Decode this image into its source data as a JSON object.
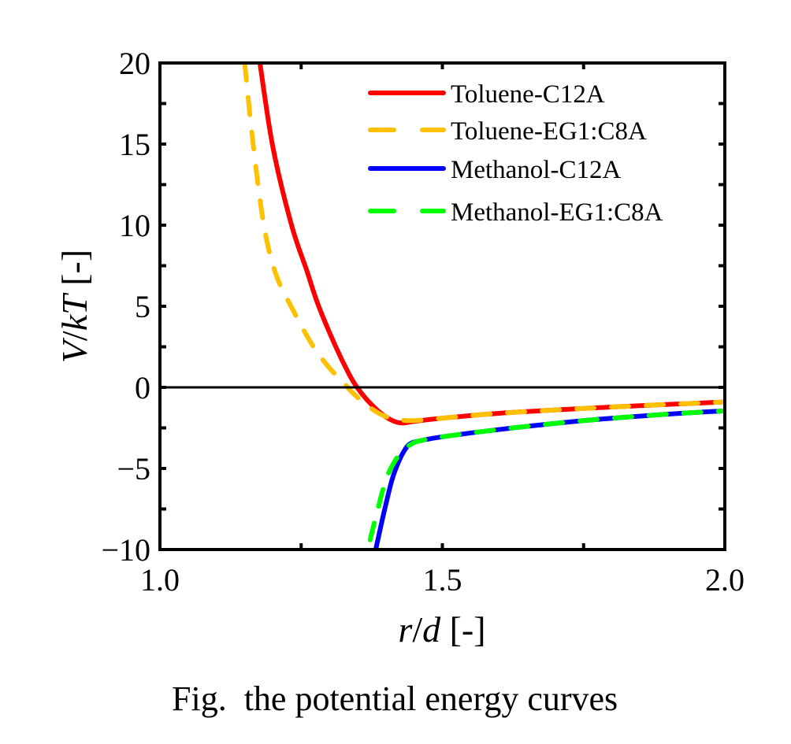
{
  "chart_data": {
    "type": "line",
    "caption": "Fig.  the potential energy curves",
    "xlabel": {
      "var1": "r",
      "slash": "/",
      "var2": "d",
      "unit": " [-]"
    },
    "ylabel": {
      "var1": "V",
      "slash": "/",
      "var2": "kT",
      "unit": " [-]"
    },
    "xlim": [
      1.0,
      2.0
    ],
    "ylim": [
      -10,
      20
    ],
    "xticks": [
      {
        "v": 1.0,
        "label": "1.0"
      },
      {
        "v": 1.5,
        "label": "1.5"
      },
      {
        "v": 2.0,
        "label": "2.0"
      }
    ],
    "yticks": [
      {
        "v": 20,
        "label": "20"
      },
      {
        "v": 15,
        "label": "15"
      },
      {
        "v": 10,
        "label": "10"
      },
      {
        "v": 5,
        "label": "5"
      },
      {
        "v": 0,
        "label": "0"
      },
      {
        "v": -5,
        "label": "−5"
      },
      {
        "v": -10,
        "label": "−10"
      }
    ],
    "hline": 0,
    "legend_position": "top-right",
    "series": [
      {
        "name": "Toluene-C12A",
        "color": "#ff0000",
        "dash": false,
        "x": [
          1.177,
          1.2,
          1.233,
          1.26,
          1.28,
          1.31,
          1.335,
          1.349,
          1.37,
          1.395,
          1.415,
          1.43,
          1.45,
          1.5,
          1.6,
          1.75,
          1.9,
          2.0
        ],
        "y": [
          20,
          14.8,
          10,
          7.2,
          5.1,
          2.6,
          0.8,
          0,
          -0.9,
          -1.7,
          -2.1,
          -2.2,
          -2.1,
          -1.9,
          -1.6,
          -1.3,
          -1.05,
          -0.9
        ]
      },
      {
        "name": "Toluene-EG1:C8A",
        "color": "#ffc000",
        "dash": true,
        "x": [
          1.15,
          1.165,
          1.184,
          1.205,
          1.235,
          1.27,
          1.3,
          1.325,
          1.34,
          1.37,
          1.4,
          1.44,
          1.5,
          1.6,
          1.75,
          1.9,
          2.0
        ],
        "y": [
          20,
          15,
          10,
          7,
          4.8,
          2.6,
          1.2,
          0.3,
          -0.3,
          -1.2,
          -1.8,
          -2.05,
          -1.9,
          -1.6,
          -1.3,
          -1.05,
          -0.9
        ]
      },
      {
        "name": "Methanol-C12A",
        "color": "#0000ff",
        "dash": false,
        "x": [
          1.382,
          1.396,
          1.41,
          1.42,
          1.431,
          1.442,
          1.46,
          1.5,
          1.6,
          1.75,
          1.9,
          2.0
        ],
        "y": [
          -10,
          -7.8,
          -5.8,
          -4.8,
          -4.0,
          -3.5,
          -3.3,
          -3.05,
          -2.6,
          -2.05,
          -1.65,
          -1.45
        ]
      },
      {
        "name": "Methanol-EG1:C8A",
        "color": "#00ff00",
        "dash": true,
        "x": [
          1.372,
          1.385,
          1.4,
          1.415,
          1.43,
          1.445,
          1.46,
          1.5,
          1.6,
          1.75,
          1.9,
          2.0
        ],
        "y": [
          -9.4,
          -7.6,
          -5.7,
          -4.6,
          -3.9,
          -3.5,
          -3.3,
          -3.05,
          -2.6,
          -2.05,
          -1.65,
          -1.45
        ]
      }
    ]
  }
}
